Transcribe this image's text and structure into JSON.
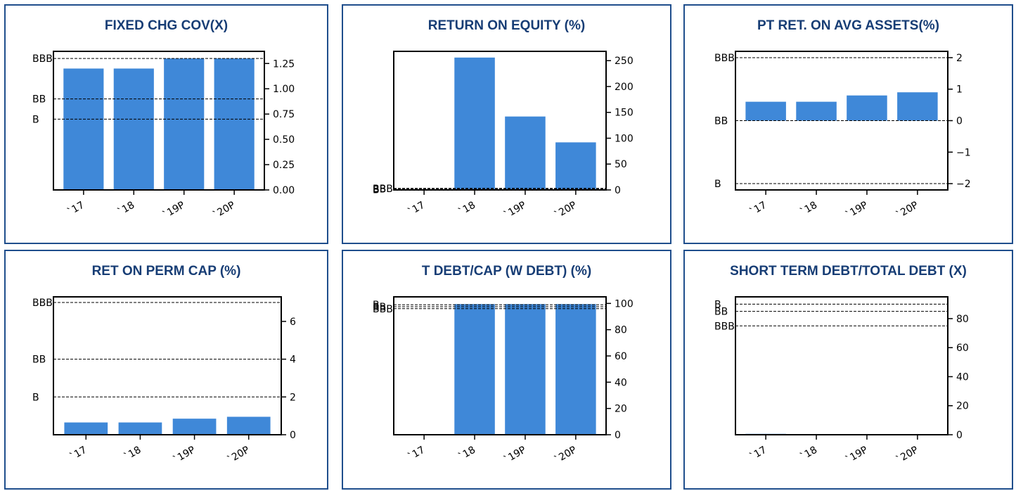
{
  "colors": {
    "bar": "#3f88d8",
    "panel_border": "#1f4e8c",
    "title": "#173d75"
  },
  "chart_data": [
    {
      "type": "bar",
      "title": "FIXED CHG COV(X)",
      "categories": [
        "`17",
        "`18",
        "`19P",
        "`20P"
      ],
      "values": [
        1.2,
        1.2,
        1.3,
        1.3
      ],
      "yticks": [
        0,
        0.25,
        0.5,
        0.75,
        1,
        1.25
      ],
      "yticklabels": [
        "0.00",
        "0.25",
        "0.50",
        "0.75",
        "1.00",
        "1.25"
      ],
      "ylim": [
        0,
        1.37
      ],
      "axis_side": "right",
      "reference_lines": [
        {
          "label": "BBB",
          "value": 1.3
        },
        {
          "label": "BB",
          "value": 0.9
        },
        {
          "label": "B",
          "value": 0.7
        }
      ]
    },
    {
      "type": "bar",
      "title": "RETURN ON EQUITY (%)",
      "categories": [
        "`17",
        "`18",
        "`19P",
        "`20P"
      ],
      "values": [
        0,
        256,
        142,
        92
      ],
      "yticks": [
        0,
        50,
        100,
        150,
        200,
        250
      ],
      "yticklabels": [
        "0",
        "50",
        "100",
        "150",
        "200",
        "250"
      ],
      "ylim": [
        0,
        268
      ],
      "axis_side": "right",
      "reference_lines": [
        {
          "label": "BBB",
          "value": 3
        },
        {
          "label": "BB",
          "value": 2
        },
        {
          "label": "B",
          "value": 1
        }
      ]
    },
    {
      "type": "bar",
      "title": "PT RET. ON AVG ASSETS(%)",
      "categories": [
        "`17",
        "`18",
        "`19P",
        "`20P"
      ],
      "values": [
        0.6,
        0.6,
        0.8,
        0.9
      ],
      "yticks": [
        -2,
        -1,
        0,
        1,
        2
      ],
      "yticklabels": [
        "−2",
        "−1",
        "0",
        "1",
        "2"
      ],
      "ylim": [
        -2.2,
        2.2
      ],
      "axis_side": "right",
      "reference_lines": [
        {
          "label": "BBB",
          "value": 2
        },
        {
          "label": "BB",
          "value": 0
        },
        {
          "label": "B",
          "value": -2
        }
      ]
    },
    {
      "type": "bar",
      "title": "RET ON PERM CAP (%)",
      "categories": [
        "`17",
        "`18",
        "`19P",
        "`20P"
      ],
      "values": [
        0.65,
        0.65,
        0.85,
        0.95
      ],
      "yticks": [
        0,
        2,
        4,
        6
      ],
      "yticklabels": [
        "0",
        "2",
        "4",
        "6"
      ],
      "ylim": [
        0,
        7.3
      ],
      "axis_side": "right",
      "reference_lines": [
        {
          "label": "BBB",
          "value": 7
        },
        {
          "label": "BB",
          "value": 4
        },
        {
          "label": "B",
          "value": 2
        }
      ]
    },
    {
      "type": "bar",
      "title": "T DEBT/CAP (W DEBT) (%)",
      "categories": [
        "`17",
        "`18",
        "`19P",
        "`20P"
      ],
      "values": [
        0,
        99.5,
        99.5,
        99.5
      ],
      "yticks": [
        0,
        20,
        40,
        60,
        80,
        100
      ],
      "yticklabels": [
        "0",
        "20",
        "40",
        "60",
        "80",
        "100"
      ],
      "ylim": [
        0,
        105
      ],
      "axis_side": "right",
      "reference_lines": [
        {
          "label": "B",
          "value": 99
        },
        {
          "label": "BB",
          "value": 97.5
        },
        {
          "label": "BBB",
          "value": 96
        }
      ]
    },
    {
      "type": "bar",
      "title": "SHORT TERM DEBT/TOTAL DEBT (X)",
      "categories": [
        "`17",
        "`18",
        "`19P",
        "`20P"
      ],
      "values": [
        0.6,
        0.3,
        0.3,
        0.3
      ],
      "yticks": [
        0,
        20,
        40,
        60,
        80
      ],
      "yticklabels": [
        "0",
        "20",
        "40",
        "60",
        "80"
      ],
      "ylim": [
        0,
        95
      ],
      "axis_side": "right",
      "reference_lines": [
        {
          "label": "B",
          "value": 90
        },
        {
          "label": "BB",
          "value": 85
        },
        {
          "label": "BBB",
          "value": 75
        }
      ]
    }
  ]
}
